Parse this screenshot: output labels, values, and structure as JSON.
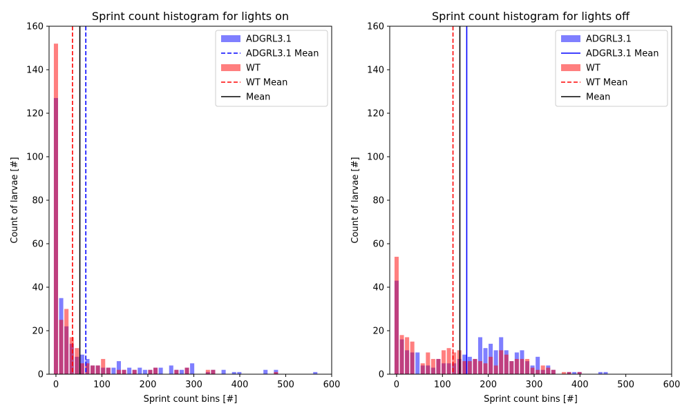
{
  "chart_data": [
    {
      "type": "bar",
      "title": "Sprint count histogram for lights on",
      "xlabel": "Sprint count bins [#]",
      "ylabel": "Count of larvae [#]",
      "xlim": [
        -15,
        600
      ],
      "ylim": [
        0,
        160
      ],
      "xticks": [
        0,
        100,
        200,
        300,
        400,
        500,
        600
      ],
      "yticks": [
        0,
        20,
        40,
        60,
        80,
        100,
        120,
        140,
        160
      ],
      "bin_width": 11.4,
      "series": [
        {
          "name": "ADGRL3.1",
          "color": "#0000ff",
          "bins": [
            [
              0,
              127
            ],
            [
              11.4,
              35
            ],
            [
              22.8,
              22
            ],
            [
              34.2,
              14
            ],
            [
              45.6,
              8
            ],
            [
              57,
              9
            ],
            [
              68.4,
              7
            ],
            [
              79.8,
              4
            ],
            [
              91.2,
              4
            ],
            [
              102.6,
              3
            ],
            [
              114,
              3
            ],
            [
              125.4,
              3
            ],
            [
              136.8,
              6
            ],
            [
              148.2,
              2
            ],
            [
              159.6,
              3
            ],
            [
              171,
              2
            ],
            [
              182.4,
              3
            ],
            [
              193.8,
              2
            ],
            [
              205.2,
              2
            ],
            [
              216.6,
              3
            ],
            [
              228,
              3
            ],
            [
              250.8,
              4
            ],
            [
              262.2,
              2
            ],
            [
              273.6,
              2
            ],
            [
              285,
              3
            ],
            [
              296.4,
              5
            ],
            [
              330.6,
              1
            ],
            [
              342,
              2
            ],
            [
              364.8,
              2
            ],
            [
              387.6,
              1
            ],
            [
              399,
              1
            ],
            [
              456,
              2
            ],
            [
              478.8,
              2
            ],
            [
              564.3,
              1
            ]
          ]
        },
        {
          "name": "WT",
          "color": "#ff0000",
          "bins": [
            [
              0,
              152
            ],
            [
              11.4,
              25
            ],
            [
              22.8,
              30
            ],
            [
              34.2,
              17
            ],
            [
              45.6,
              12
            ],
            [
              57,
              5
            ],
            [
              68.4,
              5
            ],
            [
              79.8,
              4
            ],
            [
              91.2,
              4
            ],
            [
              102.6,
              7
            ],
            [
              114,
              3
            ],
            [
              136.8,
              2
            ],
            [
              148.2,
              2
            ],
            [
              171,
              2
            ],
            [
              205.2,
              2
            ],
            [
              216.6,
              3
            ],
            [
              262.2,
              2
            ],
            [
              285,
              3
            ],
            [
              330.6,
              2
            ],
            [
              342,
              2
            ],
            [
              478.8,
              1
            ]
          ]
        }
      ],
      "lines": [
        {
          "name": "ADGRL3.1 Mean",
          "x": 65,
          "color": "#0000ff",
          "style": "dashed"
        },
        {
          "name": "WT Mean",
          "x": 36,
          "color": "#ff0000",
          "style": "dashed"
        },
        {
          "name": "Mean",
          "x": 52,
          "color": "#000000",
          "style": "solid"
        }
      ],
      "legend": "top-right"
    },
    {
      "type": "bar",
      "title": "Sprint count histogram for lights off",
      "xlabel": "Sprint count bins [#]",
      "ylabel": "Count of larvae [#]",
      "xlim": [
        -15,
        600
      ],
      "ylim": [
        0,
        160
      ],
      "xticks": [
        0,
        100,
        200,
        300,
        400,
        500,
        600
      ],
      "yticks": [
        0,
        20,
        40,
        60,
        80,
        100,
        120,
        140,
        160
      ],
      "bin_width": 11.4,
      "series": [
        {
          "name": "ADGRL3.1",
          "color": "#0000ff",
          "bins": [
            [
              0,
              43
            ],
            [
              11.4,
              16
            ],
            [
              22.8,
              11
            ],
            [
              34.2,
              10
            ],
            [
              45.6,
              10
            ],
            [
              57,
              4
            ],
            [
              68.4,
              4
            ],
            [
              79.8,
              3
            ],
            [
              91.2,
              7
            ],
            [
              102.6,
              5
            ],
            [
              114,
              5
            ],
            [
              125.4,
              5
            ],
            [
              136.8,
              7
            ],
            [
              148.2,
              9
            ],
            [
              159.6,
              8
            ],
            [
              171,
              7
            ],
            [
              182.4,
              17
            ],
            [
              193.8,
              12
            ],
            [
              205.2,
              14
            ],
            [
              216.6,
              11
            ],
            [
              228,
              17
            ],
            [
              239.4,
              11
            ],
            [
              250.8,
              6
            ],
            [
              262.2,
              10
            ],
            [
              273.6,
              11
            ],
            [
              285,
              6
            ],
            [
              296.4,
              4
            ],
            [
              307.8,
              8
            ],
            [
              319.2,
              2
            ],
            [
              330.6,
              4
            ],
            [
              342,
              2
            ],
            [
              376.2,
              1
            ],
            [
              387.6,
              1
            ],
            [
              399,
              1
            ],
            [
              444.6,
              1
            ],
            [
              456,
              1
            ]
          ]
        },
        {
          "name": "WT",
          "color": "#ff0000",
          "bins": [
            [
              0,
              54
            ],
            [
              11.4,
              18
            ],
            [
              22.8,
              17
            ],
            [
              34.2,
              15
            ],
            [
              57,
              5
            ],
            [
              68.4,
              10
            ],
            [
              79.8,
              7
            ],
            [
              91.2,
              7
            ],
            [
              102.6,
              11
            ],
            [
              114,
              12
            ],
            [
              125.4,
              10
            ],
            [
              136.8,
              11
            ],
            [
              148.2,
              6
            ],
            [
              159.6,
              6
            ],
            [
              171,
              7
            ],
            [
              182.4,
              6
            ],
            [
              193.8,
              5
            ],
            [
              205.2,
              8
            ],
            [
              216.6,
              4
            ],
            [
              228,
              11
            ],
            [
              239.4,
              9
            ],
            [
              250.8,
              6
            ],
            [
              262.2,
              7
            ],
            [
              273.6,
              7
            ],
            [
              285,
              7
            ],
            [
              296.4,
              3
            ],
            [
              307.8,
              2
            ],
            [
              319.2,
              4
            ],
            [
              330.6,
              3
            ],
            [
              342,
              2
            ],
            [
              364.8,
              1
            ],
            [
              376.2,
              1
            ],
            [
              399,
              1
            ]
          ]
        }
      ],
      "lines": [
        {
          "name": "ADGRL3.1 Mean",
          "x": 153,
          "color": "#0000ff",
          "style": "solid"
        },
        {
          "name": "WT Mean",
          "x": 123,
          "color": "#ff0000",
          "style": "dashed"
        },
        {
          "name": "Mean",
          "x": 138,
          "color": "#000000",
          "style": "solid"
        }
      ],
      "legend": "top-right"
    }
  ]
}
